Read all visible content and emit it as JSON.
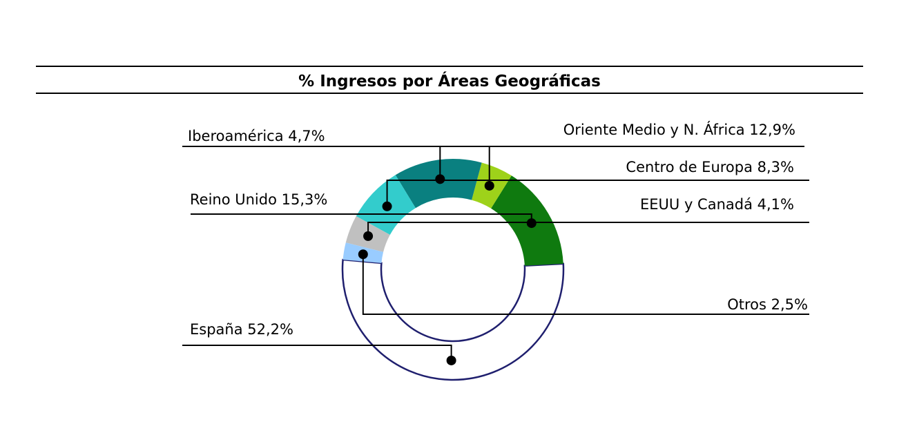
{
  "chart_data": {
    "type": "pie",
    "variant": "semi-donut",
    "title": "% Ingresos por Áreas Geográficas",
    "categories": [
      "España",
      "Reino Unido",
      "Iberoamérica",
      "Oriente Medio y N. África",
      "Centro de Europa",
      "EEUU y Canadá",
      "Otros"
    ],
    "values": [
      52.2,
      15.3,
      4.7,
      12.9,
      8.3,
      4.1,
      2.5
    ],
    "labels": [
      "España 52,2%",
      "Reino Unido 15,3%",
      "Iberoamérica 4,7%",
      "Oriente Medio y N. África 12,9%",
      "Centro de Europa 8,3%",
      "EEUU y Canadá 4,1%",
      "Otros 2,5%"
    ],
    "colors": [
      "#ffffff",
      "#0f7a0f",
      "#9ed21a",
      "#0a8080",
      "#33cccc",
      "#c0c0c0",
      "#99ccff"
    ],
    "outline_color": "#1f1f6e",
    "legend": "none"
  }
}
